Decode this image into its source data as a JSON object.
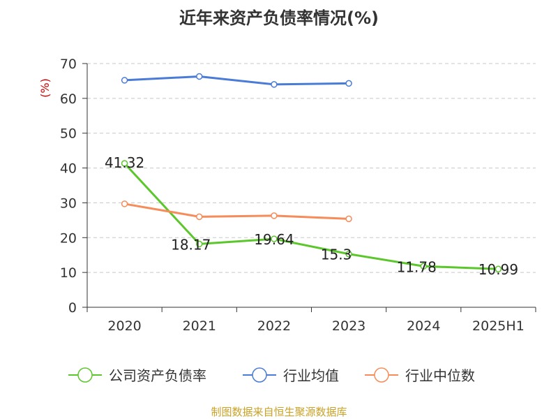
{
  "title": "近年来资产负债率情况(%)",
  "source": "制图数据来自恒生聚源数据库",
  "chart_data": {
    "type": "line",
    "title": "近年来资产负债率情况(%)",
    "ylabel": "(%)",
    "xlabel": "",
    "categories": [
      "2020",
      "2021",
      "2022",
      "2023",
      "2024",
      "2025H1"
    ],
    "ylim": [
      0,
      70
    ],
    "yticks": [
      0,
      10,
      20,
      30,
      40,
      50,
      60,
      70
    ],
    "grid": true,
    "legend_position": "bottom",
    "series": [
      {
        "name": "公司资产负债率",
        "color": "#5bc72b",
        "values": [
          41.32,
          18.17,
          19.64,
          15.3,
          11.78,
          10.99
        ],
        "labels": [
          "41.32",
          "18.17",
          "19.64",
          "15.3",
          "11.78",
          "10.99"
        ]
      },
      {
        "name": "行业均值",
        "color": "#4a7bd6",
        "values": [
          65.2,
          66.3,
          64.0,
          64.3,
          null,
          null
        ]
      },
      {
        "name": "行业中位数",
        "color": "#f58c5a",
        "values": [
          29.7,
          26.0,
          26.3,
          25.4,
          null,
          null
        ]
      }
    ]
  }
}
